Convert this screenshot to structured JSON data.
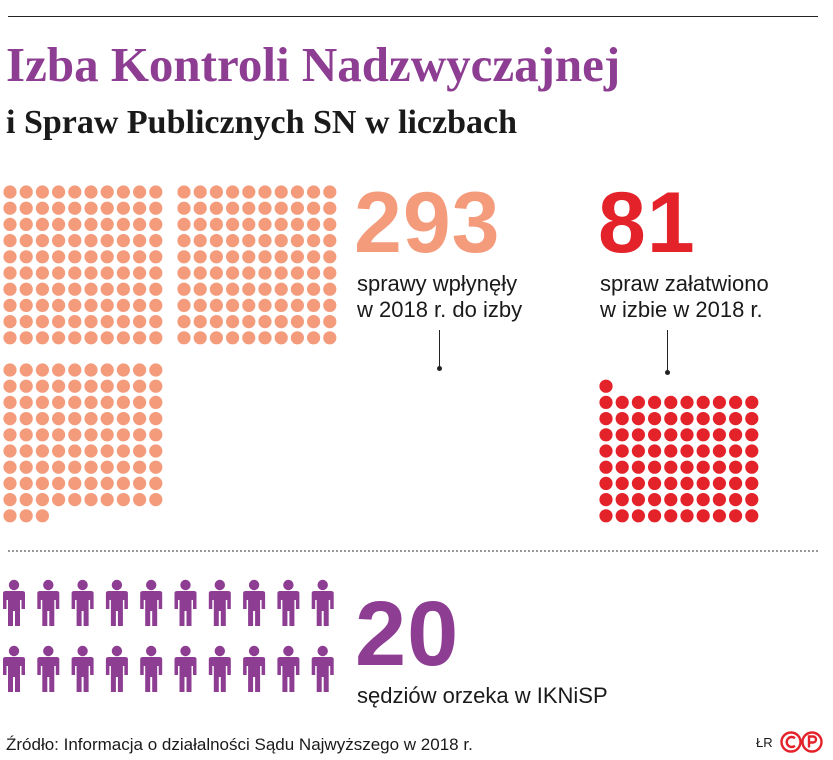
{
  "header": {
    "title": "Izba Kontroli Nadzwyczajnej",
    "subtitle": "i Spraw Publicznych SN w liczbach"
  },
  "colors": {
    "title": "#8d3d92",
    "received": "#f49b7c",
    "resolved": "#e4222a",
    "judges": "#8d3d92",
    "text": "#1a1a1a"
  },
  "stats": {
    "received": {
      "value": "293",
      "caption_line1": "sprawy wpłynęły",
      "caption_line2": "w 2018 r. do izby"
    },
    "resolved": {
      "value": "81",
      "caption_line1": "spraw załatwiono",
      "caption_line2": "w izbie w 2018 r."
    },
    "judges": {
      "value": "20",
      "caption": "sędziów orzeka w IKNiSP"
    }
  },
  "chart_data": [
    {
      "type": "table",
      "chart_kind": "dot-unit-chart",
      "unit": "1 dot = 1 case",
      "series": [
        {
          "name": "sprawy wpłynęły w 2018 r. do izby",
          "value": 293,
          "color": "#f49b7c"
        },
        {
          "name": "spraw załatwiono w izbie w 2018 r.",
          "value": 81,
          "color": "#e4222a"
        }
      ]
    },
    {
      "type": "table",
      "chart_kind": "pictogram",
      "unit": "1 figure = 1 judge",
      "icon": "person-icon",
      "series": [
        {
          "name": "sędziów orzeka w IKNiSP",
          "value": 20,
          "color": "#8d3d92"
        }
      ]
    }
  ],
  "footer": {
    "source": "Źródło: Informacja o działalności Sądu Najwyższego w 2018 r.",
    "initials": "ŁR",
    "logo": "cp-logo"
  }
}
